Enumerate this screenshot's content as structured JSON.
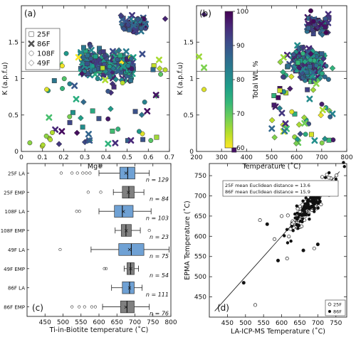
{
  "chart_data": [
    {
      "panel": "(a)",
      "type": "scatter",
      "xlabel": "Mg#",
      "ylabel": "K (a.p.f.u)",
      "xlim": [
        0,
        0.7
      ],
      "ylim": [
        0,
        2.0
      ],
      "xticks": [
        "0",
        "0.1",
        "0.2",
        "0.3",
        "0.4",
        "0.5",
        "0.6",
        "0.7"
      ],
      "yticks": [
        "0",
        "0.5",
        "1",
        "1.5"
      ],
      "reference_line_y": 1.1,
      "legend": [
        {
          "marker": "square",
          "label": "25F"
        },
        {
          "marker": "x",
          "label": "86F"
        },
        {
          "marker": "circle",
          "label": "108F"
        },
        {
          "marker": "diamond",
          "label": "49F"
        }
      ]
    },
    {
      "panel": "(b)",
      "type": "scatter",
      "xlabel": "Temperature (˚C)",
      "ylabel": "K (a.p.f.u)",
      "xlim": [
        200,
        800
      ],
      "ylim": [
        0,
        2.0
      ],
      "xticks": [
        "200",
        "300",
        "400",
        "500",
        "600",
        "700",
        "800"
      ],
      "yticks": [
        "0",
        "0.5",
        "1",
        "1.5"
      ],
      "reference_line_y": 1.1,
      "colorbar": {
        "label": "Total Wt. %",
        "min": 60,
        "max": 100,
        "ticks": [
          "60",
          "70",
          "80",
          "90",
          "100"
        ]
      }
    },
    {
      "panel": "(c)",
      "type": "box",
      "xlabel": "Ti-in-Biotite temperature (˚C)",
      "xlim": [
        400,
        800
      ],
      "xticks": [
        "450",
        "500",
        "550",
        "600",
        "650",
        "700",
        "750",
        "800"
      ],
      "categories": [
        "25F LA",
        "25F EMP",
        "108F LA",
        "108F EMP",
        "49F LA",
        "49F EMP",
        "86F LA",
        "86F EMP"
      ],
      "counts": [
        "n = 129",
        "n = 84",
        "n = 103",
        "n = 23",
        "n = 75",
        "n = 54",
        "n = 111",
        "n = 76"
      ],
      "series": [
        {
          "label": "25F LA",
          "method": "LA",
          "whisker_low": 600,
          "q1": 658,
          "median": 680,
          "q3": 700,
          "whisker_high": 740,
          "mean": 675,
          "outliers": [
            495,
            525,
            540,
            555,
            565,
            575
          ]
        },
        {
          "label": "25F EMP",
          "method": "EMP",
          "whisker_low": 640,
          "q1": 665,
          "median": 683,
          "q3": 698,
          "whisker_high": 725,
          "mean": 682,
          "outliers": [
            570,
            605
          ]
        },
        {
          "label": "108F LA",
          "method": "LA",
          "whisker_low": 600,
          "q1": 643,
          "median": 665,
          "q3": 695,
          "whisker_high": 745,
          "mean": 668,
          "outliers": [
            538,
            546
          ]
        },
        {
          "label": "108F EMP",
          "method": "EMP",
          "whisker_low": 645,
          "q1": 662,
          "median": 675,
          "q3": 690,
          "whisker_high": 715,
          "mean": 676,
          "outliers": [
            740
          ]
        },
        {
          "label": "49F LA",
          "method": "LA",
          "whisker_low": 578,
          "q1": 655,
          "median": 690,
          "q3": 725,
          "whisker_high": 795,
          "mean": 685,
          "outliers": [
            492
          ]
        },
        {
          "label": "49F EMP",
          "method": "EMP",
          "whisker_low": 670,
          "q1": 678,
          "median": 688,
          "q3": 698,
          "whisker_high": 710,
          "mean": 688,
          "outliers": [
            615,
            620
          ]
        },
        {
          "label": "86F LA",
          "method": "LA",
          "whisker_low": 635,
          "q1": 665,
          "median": 685,
          "q3": 698,
          "whisker_high": 720,
          "mean": 685,
          "outliers": []
        },
        {
          "label": "86F EMP",
          "method": "EMP",
          "whisker_low": 610,
          "q1": 660,
          "median": 678,
          "q3": 698,
          "whisker_high": 740,
          "mean": 675,
          "outliers": [
            525,
            545,
            560,
            580,
            590
          ]
        }
      ]
    },
    {
      "panel": "(d)",
      "type": "scatter",
      "xlabel": "LA-ICP-MS Temperature (˚C)",
      "ylabel": "EPMA Temperature (˚C)",
      "xlim": [
        400,
        780
      ],
      "ylim": [
        400,
        780
      ],
      "xticks": [
        "450",
        "500",
        "550",
        "600",
        "650",
        "700",
        "750"
      ],
      "yticks": [
        "450",
        "500",
        "550",
        "600",
        "650",
        "700",
        "750"
      ],
      "one_to_one_line": true,
      "annotations": [
        "25F mean Euclidean distance = 13.6",
        "86F mean Euclidean distance = 15.9"
      ],
      "legend": [
        {
          "marker": "open-circle",
          "label": "25F"
        },
        {
          "marker": "filled-circle",
          "label": "86F"
        }
      ]
    }
  ],
  "colors": {
    "LA_box": "#6fa1d4",
    "EMP_box": "#808080",
    "viridis_low": "#fde725",
    "viridis_mid": "#21918c",
    "viridis_high": "#440154"
  }
}
